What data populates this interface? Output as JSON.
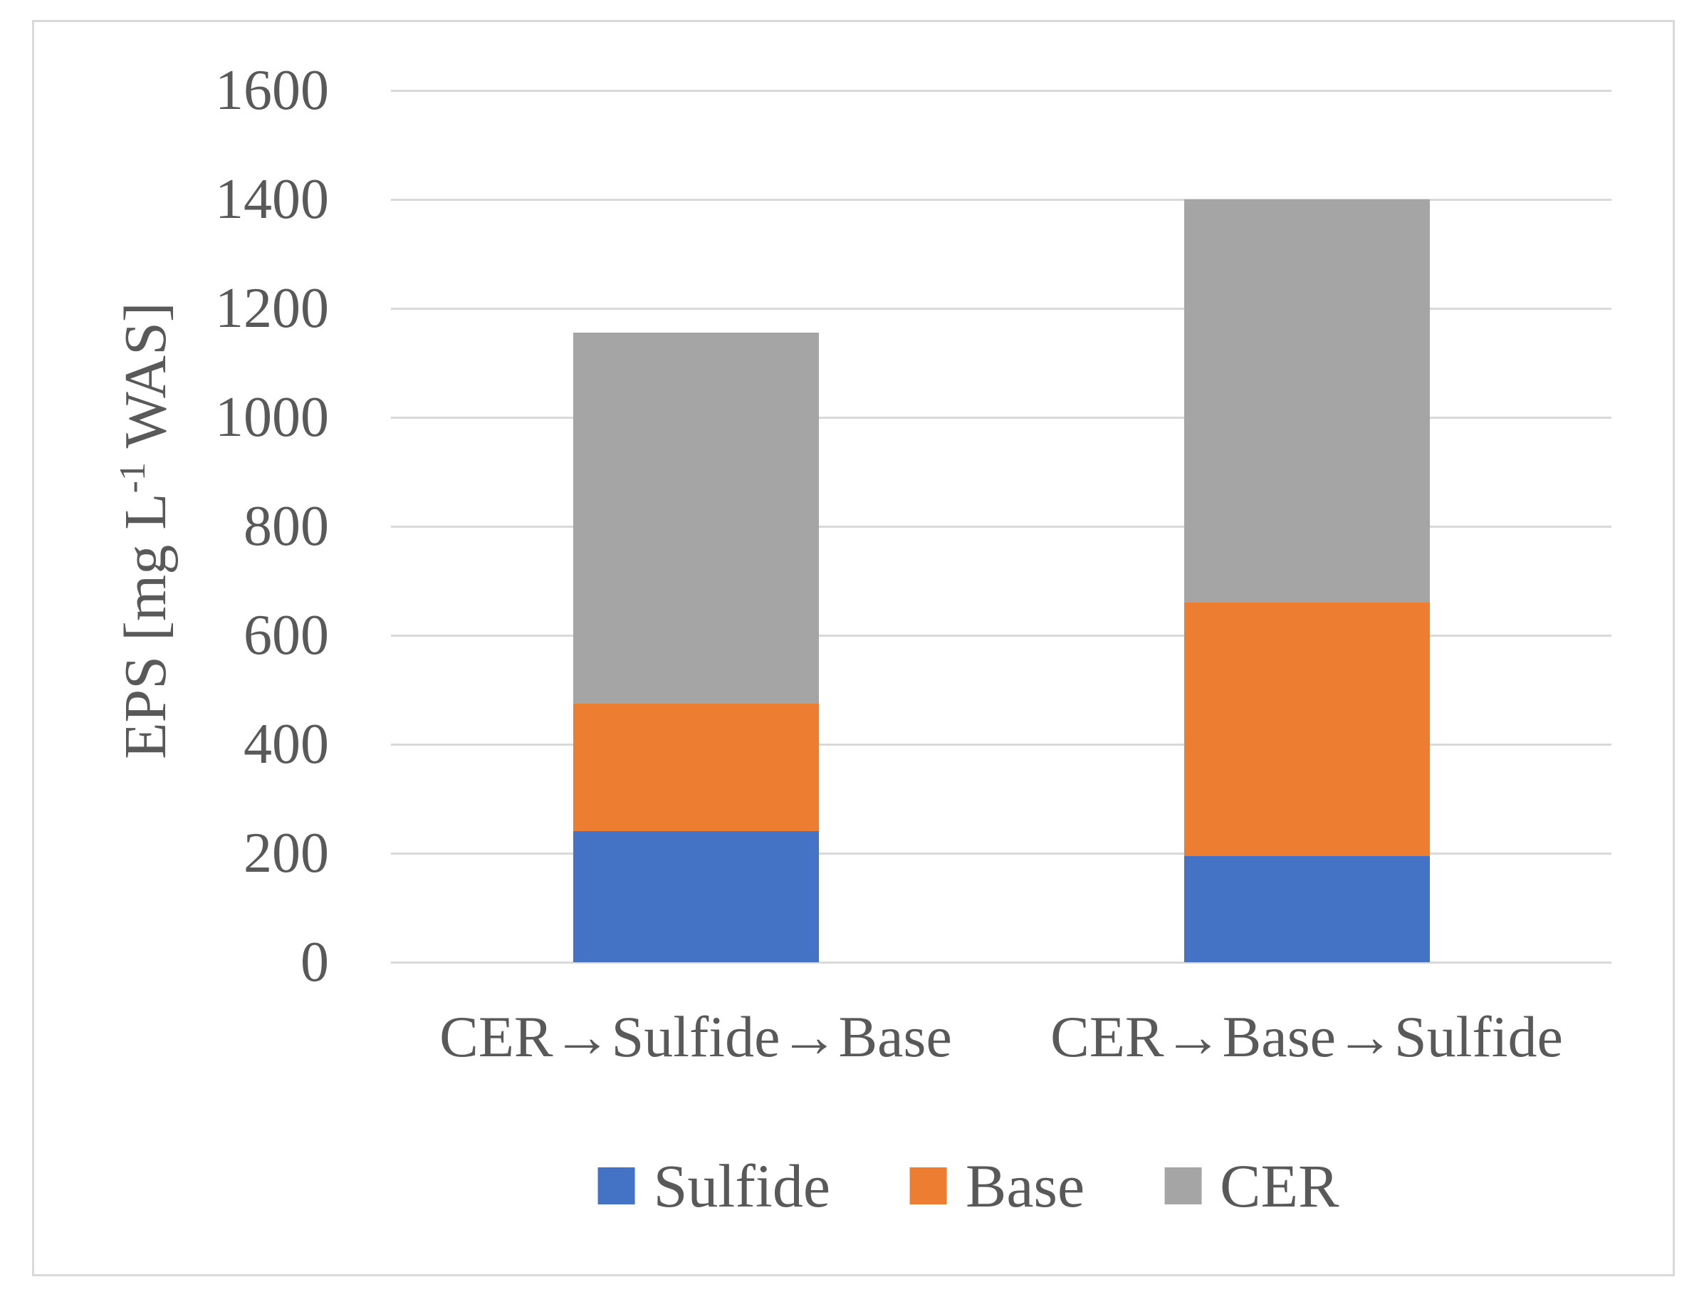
{
  "figure": {
    "description": "Stacked column chart of EPS extraction yields for two extraction sequences",
    "text_color": "#595959",
    "grid_color": "#d9d9d9",
    "frame_color": "#d9d9d9",
    "background_color": "#ffffff"
  },
  "chart_data": {
    "type": "bar",
    "stacked": true,
    "categories": [
      "CER→Sulfide→Base",
      "CER→Base→Sulfide"
    ],
    "series": [
      {
        "name": "Sulfide",
        "color": "#4472C4",
        "values": [
          240,
          195
        ]
      },
      {
        "name": "Base",
        "color": "#ED7D31",
        "values": [
          235,
          465
        ]
      },
      {
        "name": "CER",
        "color": "#A5A5A5",
        "values": [
          680,
          740
        ]
      }
    ],
    "stack_totals": [
      1155,
      1400
    ],
    "title": "",
    "xlabel": "",
    "ylabel": "EPS [mg L⁻¹ WAS]",
    "ylabel_parts": {
      "pre": "EPS [mg L",
      "sup": "-1",
      "post": " WAS]"
    },
    "ylim": [
      0,
      1600
    ],
    "ytick_step": 200,
    "ytick_labels": [
      "0",
      "200",
      "400",
      "600",
      "800",
      "1000",
      "1200",
      "1400",
      "1600"
    ],
    "grid": true,
    "legend_position": "bottom",
    "legend": [
      "Sulfide",
      "Base",
      "CER"
    ]
  }
}
